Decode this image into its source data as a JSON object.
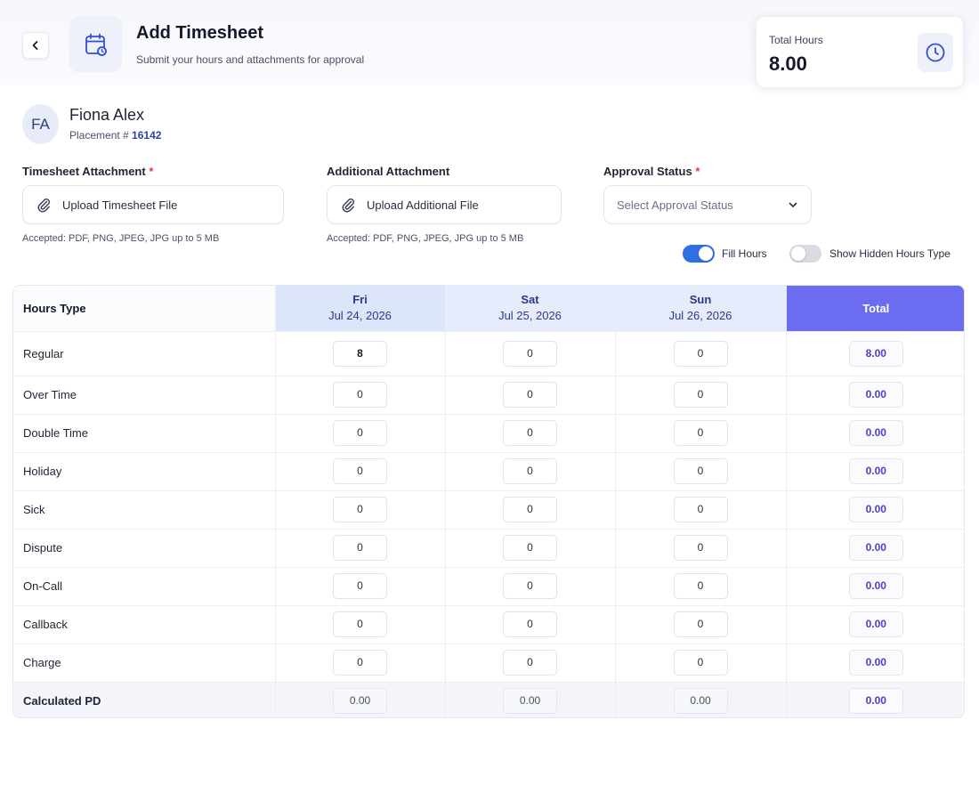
{
  "header": {
    "title": "Add Timesheet",
    "subtitle": "Submit your hours and attachments for approval",
    "back_icon": "chevron-left-icon",
    "title_icon": "calendar-icon"
  },
  "total_card": {
    "label": "Total Hours",
    "value": "8.00",
    "icon": "clock-icon"
  },
  "employee": {
    "initials": "FA",
    "name": "Fiona Alex",
    "placement_label": "Placement #",
    "placement_number": "16142"
  },
  "form": {
    "timesheet_attachment": {
      "label": "Timesheet Attachment",
      "required_mark": "*",
      "button": "Upload Timesheet File",
      "hint": "Accepted: PDF, PNG, JPEG, JPG up to 5 MB"
    },
    "additional_attachment": {
      "label": "Additional Attachment",
      "button": "Upload Additional File",
      "hint": "Accepted: PDF, PNG, JPEG, JPG up to 5 MB"
    },
    "approval_status": {
      "label": "Approval Status",
      "required_mark": "*",
      "placeholder": "Select Approval Status"
    }
  },
  "toggles": {
    "fill_hours": {
      "label": "Fill Hours",
      "on": true
    },
    "show_hidden": {
      "label": "Show Hidden Hours Type",
      "on": false
    }
  },
  "table": {
    "header_label": "Hours Type",
    "days": [
      {
        "name": "Fri",
        "date": "Jul 24, 2026"
      },
      {
        "name": "Sat",
        "date": "Jul 25, 2026"
      },
      {
        "name": "Sun",
        "date": "Jul 26, 2026"
      }
    ],
    "total_label": "Total",
    "rows": [
      {
        "label": "Regular",
        "values": [
          "8",
          "0",
          "0"
        ],
        "total": "8.00"
      },
      {
        "label": "Over Time",
        "values": [
          "0",
          "0",
          "0"
        ],
        "total": "0.00"
      },
      {
        "label": "Double Time",
        "values": [
          "0",
          "0",
          "0"
        ],
        "total": "0.00"
      },
      {
        "label": "Holiday",
        "values": [
          "0",
          "0",
          "0"
        ],
        "total": "0.00"
      },
      {
        "label": "Sick",
        "values": [
          "0",
          "0",
          "0"
        ],
        "total": "0.00"
      },
      {
        "label": "Dispute",
        "values": [
          "0",
          "0",
          "0"
        ],
        "total": "0.00"
      },
      {
        "label": "On-Call",
        "values": [
          "0",
          "0",
          "0"
        ],
        "total": "0.00"
      },
      {
        "label": "Callback",
        "values": [
          "0",
          "0",
          "0"
        ],
        "total": "0.00"
      },
      {
        "label": "Charge",
        "values": [
          "0",
          "0",
          "0"
        ],
        "total": "0.00"
      }
    ],
    "pd_row": {
      "label": "Calculated PD",
      "values": [
        "0.00",
        "0.00",
        "0.00"
      ],
      "total": "0.00"
    }
  },
  "colors": {
    "accent": "#2f6fe4",
    "total_header": "#6c6cf0",
    "required": "#e23b3b",
    "total_value": "#4a3fc8"
  }
}
